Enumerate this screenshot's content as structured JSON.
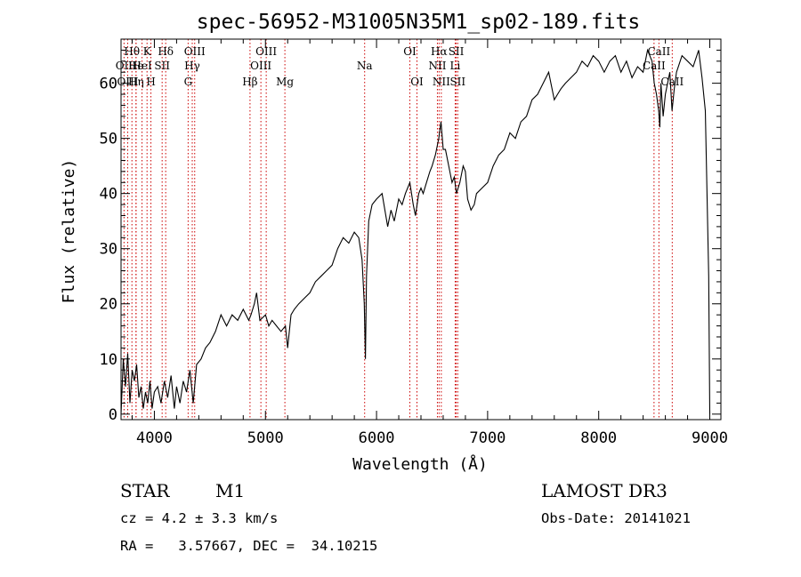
{
  "chart_data": {
    "type": "line",
    "title": "spec-56952-M31005N35M1_sp02-189.fits",
    "xlabel": "Wavelength (Å)",
    "ylabel": "Flux (relative)",
    "xlim": [
      3700,
      9100
    ],
    "ylim": [
      -1,
      68
    ],
    "x_ticks": [
      4000,
      5000,
      6000,
      7000,
      8000,
      9000
    ],
    "y_ticks": [
      0,
      10,
      20,
      30,
      40,
      50,
      60
    ],
    "series": [
      {
        "name": "flux",
        "x": [
          3700,
          3720,
          3740,
          3760,
          3780,
          3800,
          3820,
          3840,
          3860,
          3880,
          3900,
          3920,
          3940,
          3960,
          3980,
          4000,
          4030,
          4060,
          4090,
          4120,
          4150,
          4180,
          4200,
          4230,
          4260,
          4290,
          4320,
          4350,
          4380,
          4420,
          4460,
          4500,
          4550,
          4600,
          4650,
          4700,
          4750,
          4800,
          4850,
          4870,
          4900,
          4920,
          4950,
          5000,
          5030,
          5060,
          5100,
          5140,
          5180,
          5200,
          5230,
          5260,
          5300,
          5350,
          5400,
          5450,
          5500,
          5550,
          5600,
          5650,
          5700,
          5750,
          5800,
          5840,
          5870,
          5890,
          5900,
          5910,
          5930,
          5960,
          6000,
          6050,
          6100,
          6130,
          6160,
          6200,
          6230,
          6260,
          6300,
          6330,
          6350,
          6380,
          6400,
          6420,
          6450,
          6480,
          6500,
          6530,
          6560,
          6580,
          6600,
          6620,
          6650,
          6680,
          6700,
          6720,
          6750,
          6780,
          6800,
          6820,
          6850,
          6880,
          6900,
          6950,
          7000,
          7050,
          7100,
          7150,
          7200,
          7250,
          7300,
          7350,
          7400,
          7450,
          7500,
          7550,
          7570,
          7600,
          7630,
          7660,
          7700,
          7750,
          7800,
          7850,
          7900,
          7950,
          8000,
          8050,
          8100,
          8150,
          8200,
          8250,
          8300,
          8350,
          8400,
          8440,
          8480,
          8500,
          8520,
          8540,
          8550,
          8560,
          8580,
          8600,
          8620,
          8640,
          8660,
          8680,
          8700,
          8750,
          8800,
          8850,
          8900,
          8930,
          8960,
          8990,
          9000
        ],
        "y": [
          0,
          10,
          5,
          11,
          2,
          8,
          6,
          9,
          3,
          5,
          1,
          4,
          2,
          6,
          1,
          4,
          5,
          2,
          6,
          3,
          7,
          1,
          5,
          2,
          6,
          4,
          8,
          2,
          9,
          10,
          12,
          13,
          15,
          18,
          16,
          18,
          17,
          19,
          17,
          18,
          20,
          22,
          17,
          18,
          16,
          17,
          16,
          15,
          16,
          12,
          18,
          19,
          20,
          21,
          22,
          24,
          25,
          26,
          27,
          30,
          32,
          31,
          33,
          32,
          28,
          20,
          10,
          25,
          35,
          38,
          39,
          40,
          34,
          37,
          35,
          39,
          38,
          40,
          42,
          38,
          36,
          40,
          41,
          40,
          42,
          44,
          45,
          47,
          50,
          53,
          48,
          48,
          45,
          42,
          43,
          40,
          42,
          45,
          44,
          39,
          37,
          38,
          40,
          41,
          42,
          45,
          47,
          48,
          51,
          50,
          53,
          54,
          57,
          58,
          60,
          62,
          60,
          57,
          58,
          59,
          60,
          61,
          62,
          64,
          63,
          65,
          64,
          62,
          64,
          65,
          62,
          64,
          61,
          63,
          62,
          66,
          64,
          60,
          58,
          55,
          52,
          60,
          54,
          58,
          60,
          62,
          55,
          59,
          62,
          65,
          64,
          63,
          66,
          61,
          55,
          25,
          0
        ]
      }
    ],
    "line_markers": [
      {
        "label": "Hθ",
        "x": 3798,
        "row": 1
      },
      {
        "label": "OII",
        "x": 3727,
        "row": 2
      },
      {
        "label": "OIII",
        "x": 3760,
        "row": 3
      },
      {
        "label": "He",
        "x": 3835,
        "row": 2
      },
      {
        "label": "Hη",
        "x": 3835,
        "row": 3
      },
      {
        "label": "K",
        "x": 3934,
        "row": 1
      },
      {
        "label": "HeI",
        "x": 3889,
        "row": 2
      },
      {
        "label": "H",
        "x": 3969,
        "row": 3
      },
      {
        "label": "SII",
        "x": 4070,
        "row": 2
      },
      {
        "label": "Hδ",
        "x": 4102,
        "row": 1
      },
      {
        "label": "OIII",
        "x": 4363,
        "row": 1
      },
      {
        "label": "Hγ",
        "x": 4341,
        "row": 2
      },
      {
        "label": "G",
        "x": 4304,
        "row": 3
      },
      {
        "label": "Hβ",
        "x": 4861,
        "row": 3
      },
      {
        "label": "OIII",
        "x": 4959,
        "row": 2
      },
      {
        "label": "OIII",
        "x": 5007,
        "row": 1
      },
      {
        "label": "Mg",
        "x": 5175,
        "row": 3
      },
      {
        "label": "Na",
        "x": 5893,
        "row": 2
      },
      {
        "label": "OI",
        "x": 6300,
        "row": 1
      },
      {
        "label": "OI",
        "x": 6364,
        "row": 3
      },
      {
        "label": "Hα",
        "x": 6563,
        "row": 1
      },
      {
        "label": "NII",
        "x": 6548,
        "row": 2
      },
      {
        "label": "NII",
        "x": 6583,
        "row": 3
      },
      {
        "label": "SII",
        "x": 6717,
        "row": 1
      },
      {
        "label": "Li",
        "x": 6708,
        "row": 2
      },
      {
        "label": "SII",
        "x": 6731,
        "row": 3
      },
      {
        "label": "CaII",
        "x": 8498,
        "row": 2
      },
      {
        "label": "CaII",
        "x": 8542,
        "row": 1
      },
      {
        "label": "CaII",
        "x": 8662,
        "row": 3
      }
    ],
    "line_color": "#000000",
    "marker_color": "#cc0000"
  },
  "info": {
    "object_type": "STAR",
    "subclass": "M1",
    "survey": "LAMOST DR3",
    "cz": "cz = 4.2 ± 3.3 km/s",
    "obs_date": "Obs-Date: 20141021",
    "coords": "RA =   3.57667, DEC =  34.10215"
  }
}
